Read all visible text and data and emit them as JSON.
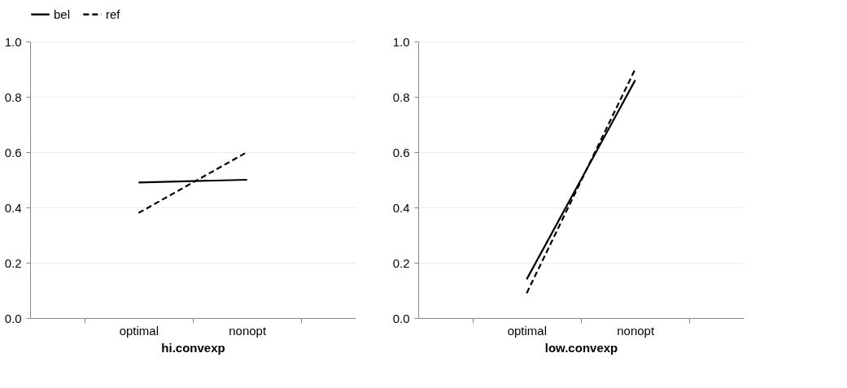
{
  "chart_data": [
    {
      "type": "line",
      "xlabel": "hi.convexp",
      "categories": [
        "optimal",
        "nonopt"
      ],
      "ylim": [
        0,
        1
      ],
      "yticks": [
        {
          "value": 0,
          "label": "0.0"
        },
        {
          "value": 0.2,
          "label": "0.2"
        },
        {
          "value": 0.4,
          "label": "0.4"
        },
        {
          "value": 0.6,
          "label": "0.6"
        },
        {
          "value": 0.8,
          "label": "0.8"
        },
        {
          "value": 1,
          "label": "1.0"
        }
      ],
      "grid": "y",
      "legend": "top",
      "marker": "none",
      "series": [
        {
          "name": "bel",
          "color": "#000000",
          "line_style": "solid",
          "values": [
            0.49,
            0.5
          ]
        },
        {
          "name": "ref",
          "color": "#000000",
          "line_style": "dashed",
          "values": [
            0.38,
            0.6
          ]
        }
      ]
    },
    {
      "type": "line",
      "xlabel": "low.convexp",
      "categories": [
        "optimal",
        "nonopt"
      ],
      "ylim": [
        0,
        1
      ],
      "yticks": [
        {
          "value": 0,
          "label": "0.0"
        },
        {
          "value": 0.2,
          "label": "0.2"
        },
        {
          "value": 0.4,
          "label": "0.4"
        },
        {
          "value": 0.6,
          "label": "0.6"
        },
        {
          "value": 0.8,
          "label": "0.8"
        },
        {
          "value": 1,
          "label": "1.0"
        }
      ],
      "grid": "y",
      "legend": "top",
      "marker": "none",
      "series": [
        {
          "name": "bel",
          "color": "#000000",
          "line_style": "solid",
          "values": [
            0.14,
            0.86
          ]
        },
        {
          "name": "ref",
          "color": "#000000",
          "line_style": "dashed",
          "values": [
            0.09,
            0.9
          ]
        }
      ]
    }
  ]
}
